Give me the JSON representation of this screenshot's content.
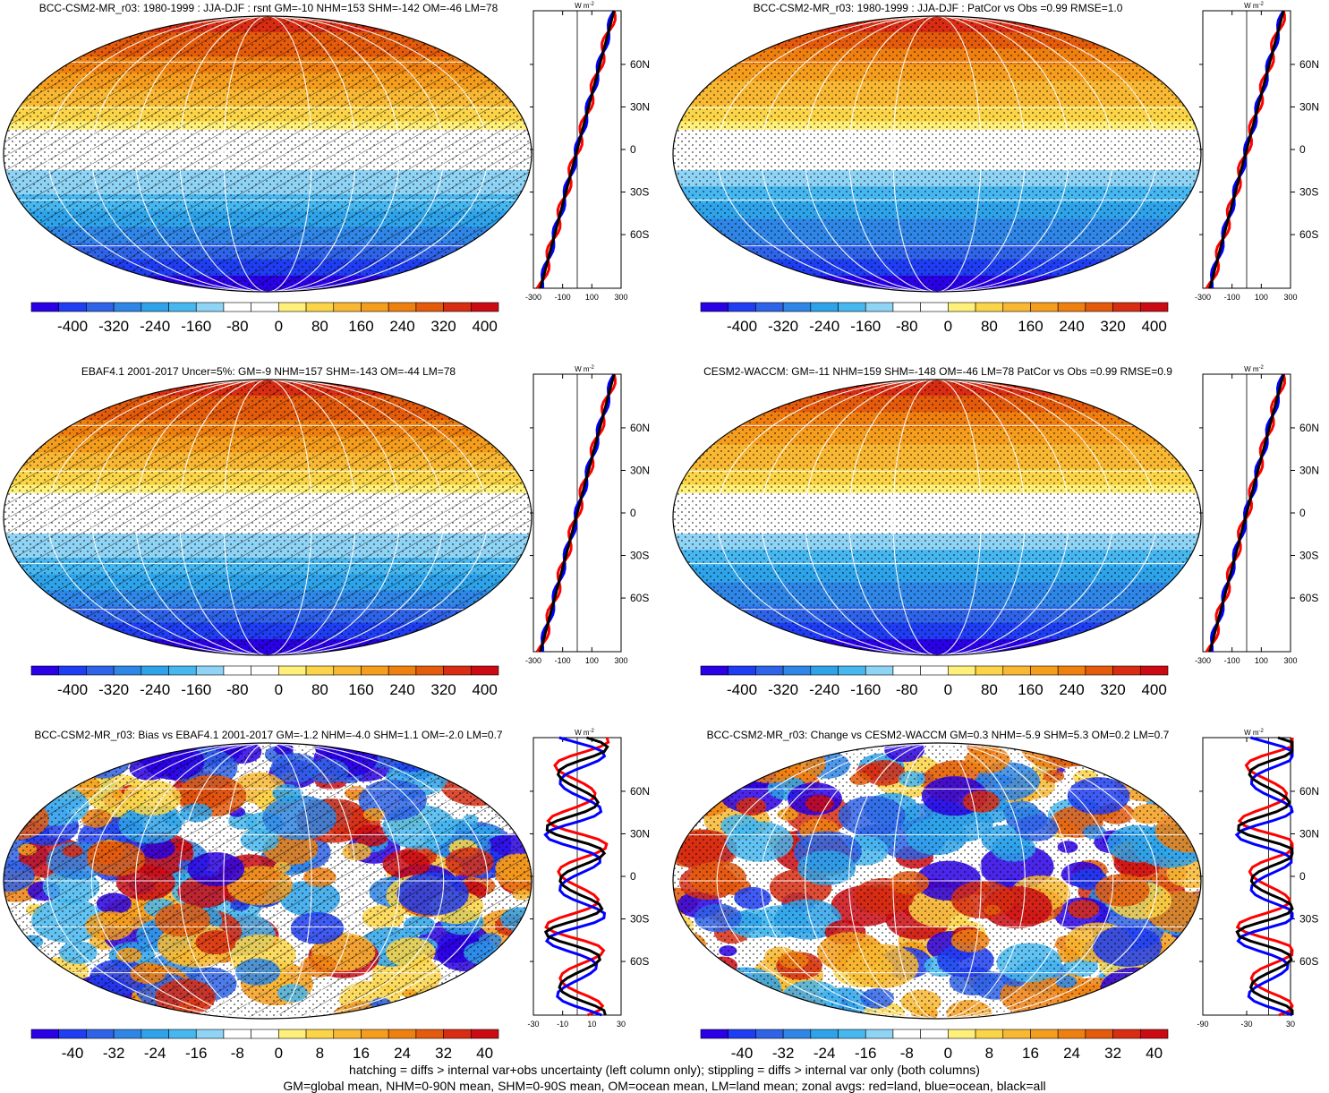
{
  "colorbar_std": [
    "-400",
    "-320",
    "-240",
    "-160",
    "-80",
    "0",
    "80",
    "160",
    "240",
    "320",
    "400"
  ],
  "colorbar_diff": [
    "-40",
    "-32",
    "-24",
    "-16",
    "-8",
    "0",
    "8",
    "16",
    "24",
    "32",
    "40"
  ],
  "lat_labels": [
    "60N",
    "30N",
    "0",
    "30S",
    "60S"
  ],
  "units": "W m",
  "units_sup": "-2",
  "panels": [
    {
      "id": "p1",
      "title": "BCC-CSM2-MR_r03: 1980-1999 : JJA-DJF : rsnt GM=-10 NHM=153 SHM=-142 OM=-46 LM=78",
      "x_ticks": [
        "-300",
        "-100",
        "100",
        "300"
      ],
      "kind": "std",
      "hatch": true
    },
    {
      "id": "p2",
      "title": "BCC-CSM2-MR_r03: 1980-1999 : JJA-DJF : PatCor vs Obs =0.99 RMSE=1.0",
      "x_ticks": [
        "-300",
        "-100",
        "100",
        "300"
      ],
      "kind": "std",
      "hatch": false
    },
    {
      "id": "p3",
      "title": "EBAF4.1 2001-2017 Uncer=5%: GM=-9 NHM=157 SHM=-143 OM=-44 LM=78",
      "x_ticks": [
        "-300",
        "-100",
        "100",
        "300"
      ],
      "kind": "std",
      "hatch": true
    },
    {
      "id": "p4",
      "title": "CESM2-WACCM: GM=-11 NHM=159 SHM=-148 OM=-46 LM=78 PatCor vs Obs =0.99 RMSE=0.9",
      "x_ticks": [
        "-300",
        "-100",
        "100",
        "300"
      ],
      "kind": "std",
      "hatch": false
    },
    {
      "id": "p5",
      "title": "BCC-CSM2-MR_r03: Bias vs EBAF4.1 2001-2017 GM=-1.2 NHM=-4.0 SHM=1.1 OM=-2.0 LM=0.7",
      "x_ticks": [
        "-30",
        "-10",
        "10",
        "30"
      ],
      "kind": "diff",
      "hatch": true
    },
    {
      "id": "p6",
      "title": "BCC-CSM2-MR_r03: Change vs CESM2-WACCM GM=0.3 NHM=-5.9 SHM=5.3 OM=0.2 LM=0.7",
      "x_ticks": [
        "-90",
        "-30",
        "30"
      ],
      "kind": "diff2",
      "hatch": false
    }
  ],
  "footer": {
    "line1": "hatching = diffs > internal var+obs uncertainty (left column only); stippling = diffs > internal var only (both columns)",
    "line2": "GM=global mean, NHM=0-90N mean, SHM=0-90S mean, OM=ocean mean, LM=land mean; zonal avgs: red=land, blue=ocean, black=all"
  },
  "palette": [
    "#2a00e6",
    "#1f3df2",
    "#2f63e8",
    "#2f86e6",
    "#2ea3ea",
    "#47b7f0",
    "#8fd3f5",
    "#ffffff",
    "#ffffff",
    "#fff07a",
    "#fbd547",
    "#f8b833",
    "#f59d1d",
    "#ef8010",
    "#e45b0c",
    "#d82d12",
    "#cc0a14"
  ],
  "line_colors": {
    "land": "#ff0000",
    "ocean": "#0000ff",
    "all": "#000000"
  }
}
